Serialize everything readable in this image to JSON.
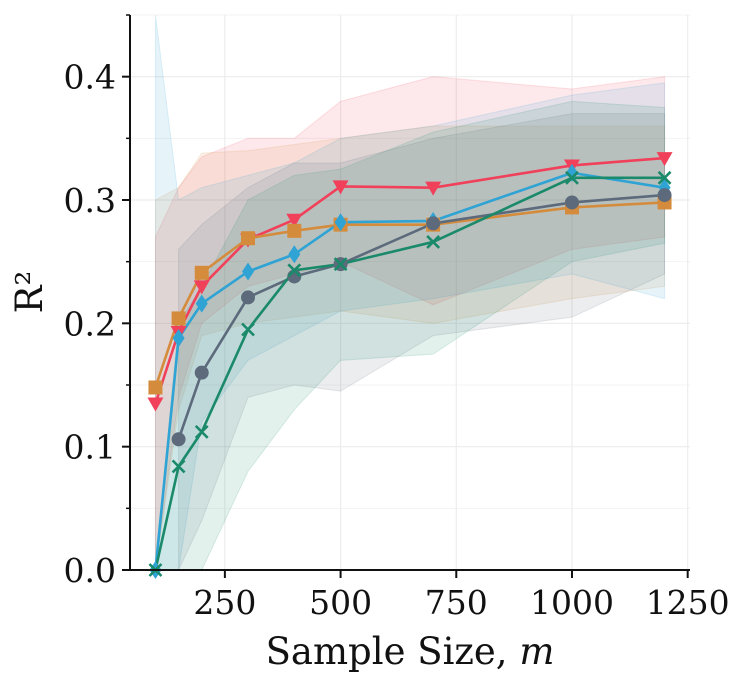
{
  "chart_data": {
    "type": "line",
    "title": "",
    "xlabel": "Sample Size, ",
    "xlabel_var": "m",
    "ylabel": "R²",
    "xlim": [
      45,
      1255
    ],
    "ylim": [
      0.0,
      0.45
    ],
    "xticks": [
      250,
      500,
      750,
      1000,
      1250
    ],
    "xtick_labels": [
      "250",
      "500",
      "750",
      "1000",
      "1250"
    ],
    "yticks": [
      0.0,
      0.1,
      0.2,
      0.3,
      0.4
    ],
    "ytick_labels": [
      "0.0",
      "0.1",
      "0.2",
      "0.3",
      "0.4"
    ],
    "grid": true,
    "series": [
      {
        "name": "red-triangle",
        "color": "#f0405a",
        "marker": "triangle-down",
        "x": [
          100,
          150,
          200,
          300,
          400,
          500,
          700,
          1000,
          1200
        ],
        "values": [
          0.135,
          0.193,
          0.23,
          0.268,
          0.284,
          0.311,
          0.31,
          0.328,
          0.334
        ],
        "band_lower": [
          0.0,
          0.14,
          0.2,
          0.23,
          0.24,
          0.25,
          0.215,
          0.26,
          0.27
        ],
        "band_upper": [
          0.27,
          0.31,
          0.335,
          0.35,
          0.35,
          0.38,
          0.4,
          0.39,
          0.4
        ]
      },
      {
        "name": "orange-square",
        "color": "#d48c3c",
        "marker": "square",
        "x": [
          100,
          150,
          200,
          300,
          400,
          500,
          700,
          1000,
          1200
        ],
        "values": [
          0.148,
          0.204,
          0.241,
          0.269,
          0.275,
          0.28,
          0.28,
          0.294,
          0.298
        ],
        "band_lower": [
          0.0,
          0.13,
          0.19,
          0.2,
          0.205,
          0.21,
          0.2,
          0.22,
          0.23
        ],
        "band_upper": [
          0.3,
          0.31,
          0.338,
          0.34,
          0.345,
          0.35,
          0.36,
          0.36,
          0.36
        ]
      },
      {
        "name": "blue-diamond",
        "color": "#2ea3d4",
        "marker": "diamond",
        "x": [
          100,
          150,
          200,
          300,
          400,
          500,
          700,
          1000,
          1200
        ],
        "values": [
          0.0,
          0.188,
          0.216,
          0.242,
          0.256,
          0.282,
          0.283,
          0.322,
          0.31
        ],
        "band_lower": [
          0.0,
          0.0,
          0.12,
          0.17,
          0.19,
          0.21,
          0.22,
          0.24,
          0.22
        ],
        "band_upper": [
          0.45,
          0.3,
          0.31,
          0.32,
          0.33,
          0.35,
          0.36,
          0.385,
          0.395
        ]
      },
      {
        "name": "gray-circle",
        "color": "#5c6a7c",
        "marker": "circle",
        "x": [
          100,
          150,
          200,
          300,
          400,
          500,
          700,
          1000,
          1200
        ],
        "values": [
          null,
          0.106,
          0.16,
          0.221,
          0.238,
          0.248,
          0.281,
          0.298,
          0.304
        ],
        "band_lower": [
          null,
          0.0,
          0.04,
          0.14,
          0.15,
          0.145,
          0.19,
          0.205,
          0.24
        ],
        "band_upper": [
          null,
          0.26,
          0.28,
          0.31,
          0.33,
          0.33,
          0.35,
          0.37,
          0.37
        ]
      },
      {
        "name": "green-x",
        "color": "#1a8a6a",
        "marker": "x",
        "x": [
          100,
          150,
          200,
          300,
          400,
          500,
          700,
          1000,
          1200
        ],
        "values": [
          0.0,
          0.084,
          0.112,
          0.195,
          0.243,
          0.248,
          0.266,
          0.318,
          0.318
        ],
        "band_lower": [
          0.0,
          0.0,
          0.0,
          0.08,
          0.13,
          0.17,
          0.175,
          0.25,
          0.265
        ],
        "band_upper": [
          0.0,
          0.2,
          0.23,
          0.3,
          0.32,
          0.325,
          0.355,
          0.38,
          0.375
        ]
      }
    ]
  }
}
